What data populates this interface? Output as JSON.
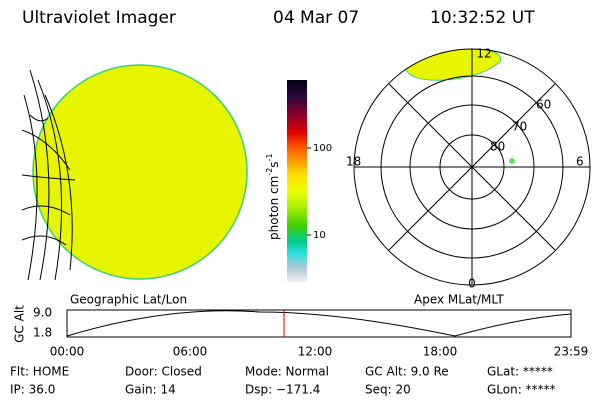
{
  "header": {
    "title": "Ultraviolet Imager",
    "date": "04 Mar 07",
    "time": "10:32:52 UT"
  },
  "colorbar": {
    "unit": {
      "base": "photon cm",
      "exp1": "-2",
      "mid": "s",
      "exp2": "-1"
    },
    "ticks": [
      "100",
      "10"
    ]
  },
  "left_panel": {
    "label": "Geographic Lat/Lon"
  },
  "right_panel": {
    "label": "Apex MLat/MLT",
    "mlt": [
      "12",
      "18",
      "6",
      "0"
    ],
    "mlat": [
      "60",
      "70",
      "80"
    ]
  },
  "timeline": {
    "axis_label": "GC Alt",
    "y_labels": [
      "9.0",
      "1.8"
    ],
    "times": [
      "00:00",
      "06:00",
      "12:00",
      "18:00",
      "23:59"
    ]
  },
  "footer": {
    "rows": [
      [
        "Flt: HOME",
        "Door: Closed",
        "Mode: Normal",
        "GC Alt: 9.0 Re",
        "GLat: *****"
      ],
      [
        "IP: 36.0",
        "Gain: 14",
        "Dsp: −171.4",
        "Seq: 20",
        "GLon: *****"
      ]
    ]
  }
}
